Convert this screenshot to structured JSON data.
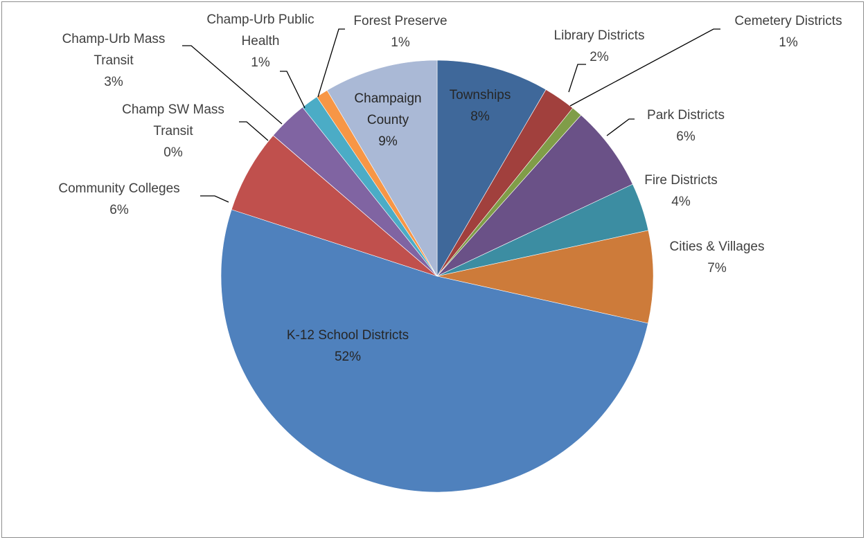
{
  "chart_data": {
    "type": "pie",
    "start_angle_deg": 0,
    "direction": "clockwise",
    "legend": "none",
    "slices": [
      {
        "name": "Townships",
        "pct_label": "8%",
        "value": 8.4,
        "color": "#3F689A"
      },
      {
        "name": "Library Districts",
        "pct_label": "2%",
        "value": 2.4,
        "color": "#A1403D"
      },
      {
        "name": "Cemetery Districts",
        "pct_label": "1%",
        "value": 0.8,
        "color": "#809D48"
      },
      {
        "name": "Park Districts",
        "pct_label": "6%",
        "value": 6.4,
        "color": "#6A5187"
      },
      {
        "name": "Fire Districts",
        "pct_label": "4%",
        "value": 3.6,
        "color": "#3C8DA2"
      },
      {
        "name": "Cities & Villages",
        "pct_label": "7%",
        "value": 6.9,
        "color": "#CD7B3A"
      },
      {
        "name": "K-12 School Districts",
        "pct_label": "52%",
        "value": 51.5,
        "color": "#4F81BD"
      },
      {
        "name": "Community Colleges",
        "pct_label": "6%",
        "value": 6.3,
        "color": "#C0504D"
      },
      {
        "name": "Champ SW Mass Transit",
        "pct_label": "0%",
        "value": 0.01,
        "color": "#9BBB59"
      },
      {
        "name": "Champ-Urb Mass Transit",
        "pct_label": "3%",
        "value": 3.0,
        "color": "#8064A2"
      },
      {
        "name": "Champ-Urb Public Health",
        "pct_label": "1%",
        "value": 1.3,
        "color": "#4BACC6"
      },
      {
        "name": "Forest Preserve",
        "pct_label": "1%",
        "value": 0.9,
        "color": "#F79646"
      },
      {
        "name": "Champaign County",
        "pct_label": "9%",
        "value": 8.5,
        "color": "#AAB9D6"
      }
    ],
    "labels": [
      {
        "slice": 0,
        "lines": [
          "Townships",
          "8%"
        ]
      },
      {
        "slice": 1,
        "lines": [
          "Library Districts",
          "2%"
        ]
      },
      {
        "slice": 2,
        "lines": [
          "Cemetery Districts",
          "1%"
        ]
      },
      {
        "slice": 3,
        "lines": [
          "Park Districts",
          "6%"
        ]
      },
      {
        "slice": 4,
        "lines": [
          "Fire Districts",
          "4%"
        ]
      },
      {
        "slice": 5,
        "lines": [
          "Cities & Villages",
          "7%"
        ]
      },
      {
        "slice": 6,
        "lines": [
          "K-12 School Districts",
          "52%"
        ]
      },
      {
        "slice": 7,
        "lines": [
          "Community Colleges",
          "6%"
        ]
      },
      {
        "slice": 8,
        "lines": [
          "Champ SW Mass",
          "Transit",
          "0%"
        ]
      },
      {
        "slice": 9,
        "lines": [
          "Champ-Urb Mass",
          "Transit",
          "3%"
        ]
      },
      {
        "slice": 10,
        "lines": [
          "Champ-Urb Public",
          "Health",
          "1%"
        ]
      },
      {
        "slice": 11,
        "lines": [
          "Forest Preserve",
          "1%"
        ]
      },
      {
        "slice": 12,
        "lines": [
          "Champaign",
          "County",
          "9%"
        ]
      }
    ]
  }
}
